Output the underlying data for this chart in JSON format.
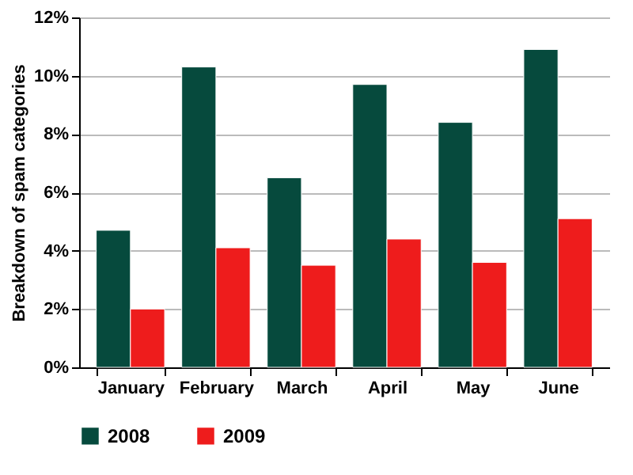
{
  "chart_data": {
    "type": "bar",
    "ylabel": "Breakdown of spam categories",
    "categories": [
      "January",
      "February",
      "March",
      "April",
      "May",
      "June"
    ],
    "series": [
      {
        "name": "2008",
        "color": "#064a3d",
        "values": [
          4.7,
          10.3,
          6.5,
          9.7,
          8.4,
          10.9
        ]
      },
      {
        "name": "2009",
        "color": "#ee1c1c",
        "values": [
          2.0,
          4.1,
          3.5,
          4.4,
          3.6,
          5.1
        ]
      }
    ],
    "ylim": [
      0,
      12
    ],
    "yticks": [
      {
        "value": 0,
        "label": "0%"
      },
      {
        "value": 2,
        "label": "2%"
      },
      {
        "value": 4,
        "label": "4%"
      },
      {
        "value": 6,
        "label": "6%"
      },
      {
        "value": 8,
        "label": "8%"
      },
      {
        "value": 10,
        "label": "10%"
      },
      {
        "value": 12,
        "label": "12%"
      }
    ],
    "grid": "y",
    "legend": "bottom"
  }
}
